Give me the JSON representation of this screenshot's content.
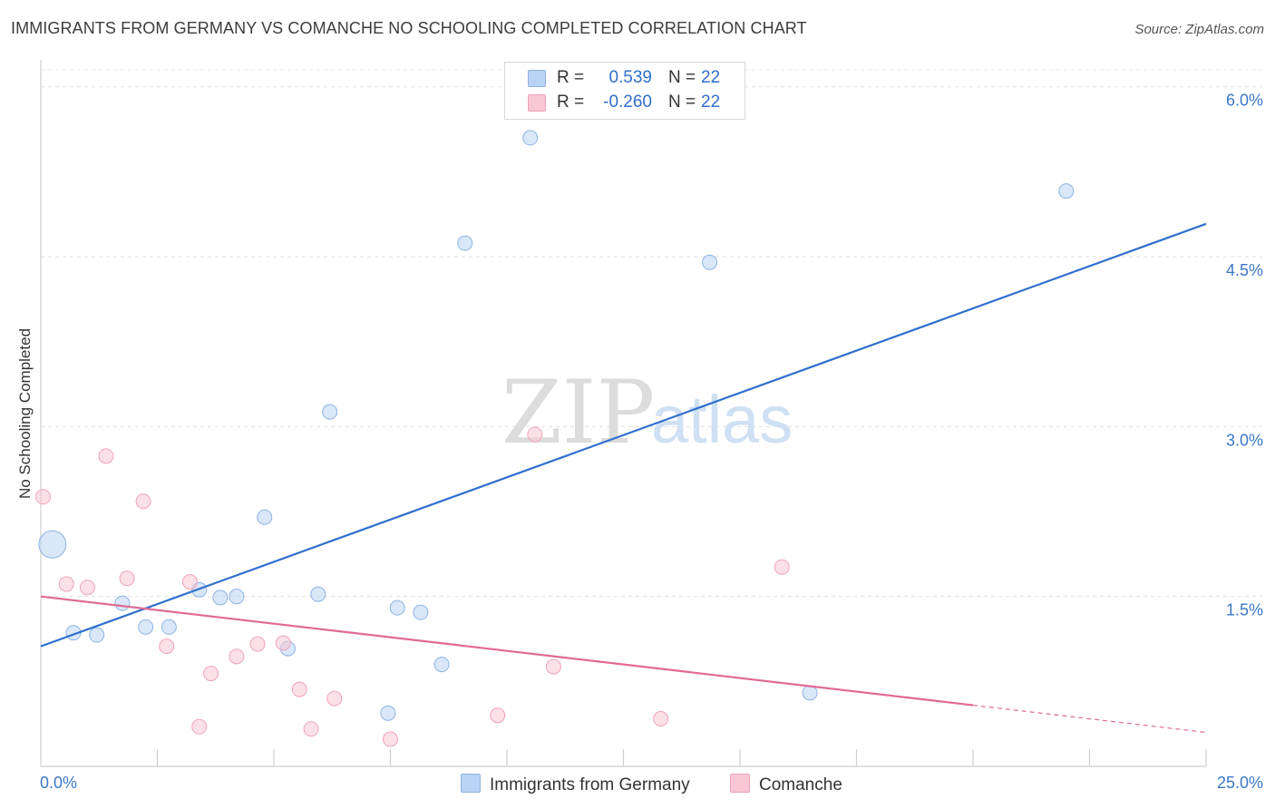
{
  "title": "IMMIGRANTS FROM GERMANY VS COMANCHE NO SCHOOLING COMPLETED CORRELATION CHART",
  "source": "Source: ZipAtlas.com",
  "colors": {
    "blue_fill": "#b9d3f4",
    "blue_stroke": "#8fb3e3",
    "blue_line": "#2f6fcc",
    "pink_fill": "#f9c6d6",
    "pink_stroke": "#efa3ba",
    "pink_line": "#e06a94",
    "label_blue": "#3a78c8"
  },
  "legend": {
    "series1": {
      "r_label": "R =",
      "r_value": "0.539",
      "n_label": "N =",
      "n_value": "22"
    },
    "series2": {
      "r_label": "R =",
      "r_value": "-0.260",
      "n_label": "N =",
      "n_value": "22"
    }
  },
  "bottom_legend": {
    "series1": "Immigrants from Germany",
    "series2": "Comanche"
  },
  "watermark": {
    "zip": "ZIP",
    "atlas": "atlas"
  },
  "chart_data": {
    "type": "scatter",
    "title": "IMMIGRANTS FROM GERMANY VS COMANCHE NO SCHOOLING COMPLETED CORRELATION CHART",
    "xlabel": "",
    "ylabel": "No Schooling Completed",
    "xlim": [
      0,
      25
    ],
    "ylim": [
      0,
      6.15
    ],
    "x_tick_labels": [
      "0.0%",
      "25.0%"
    ],
    "y_ticks": [
      {
        "value": 1.5,
        "label": "1.5%"
      },
      {
        "value": 3.0,
        "label": "3.0%"
      },
      {
        "value": 4.5,
        "label": "4.5%"
      },
      {
        "value": 6.0,
        "label": "6.0%"
      }
    ],
    "grid": "horizontal-dashed",
    "series": [
      {
        "name": "Immigrants from Germany",
        "color": "blue",
        "points": [
          {
            "x": 0.25,
            "y": 1.96,
            "large": true
          },
          {
            "x": 0.7,
            "y": 1.18
          },
          {
            "x": 1.2,
            "y": 1.16
          },
          {
            "x": 1.75,
            "y": 1.44
          },
          {
            "x": 2.25,
            "y": 1.23
          },
          {
            "x": 2.75,
            "y": 1.23
          },
          {
            "x": 3.4,
            "y": 1.56
          },
          {
            "x": 3.85,
            "y": 1.49
          },
          {
            "x": 4.2,
            "y": 1.5
          },
          {
            "x": 4.8,
            "y": 2.2
          },
          {
            "x": 5.3,
            "y": 1.04
          },
          {
            "x": 5.95,
            "y": 1.52
          },
          {
            "x": 6.2,
            "y": 3.13
          },
          {
            "x": 7.45,
            "y": 0.47
          },
          {
            "x": 7.65,
            "y": 1.4
          },
          {
            "x": 8.15,
            "y": 1.36
          },
          {
            "x": 8.6,
            "y": 0.9
          },
          {
            "x": 9.1,
            "y": 4.62
          },
          {
            "x": 10.5,
            "y": 5.55
          },
          {
            "x": 14.35,
            "y": 4.45
          },
          {
            "x": 16.5,
            "y": 0.65
          },
          {
            "x": 22.0,
            "y": 5.08
          }
        ],
        "trend": {
          "x0": 0,
          "y0": 1.06,
          "x1": 25,
          "y1": 4.79
        }
      },
      {
        "name": "Comanche",
        "color": "pink",
        "points": [
          {
            "x": 0.05,
            "y": 2.38
          },
          {
            "x": 0.55,
            "y": 1.61
          },
          {
            "x": 1.0,
            "y": 1.58
          },
          {
            "x": 1.4,
            "y": 2.74
          },
          {
            "x": 1.85,
            "y": 1.66
          },
          {
            "x": 2.2,
            "y": 2.34
          },
          {
            "x": 2.7,
            "y": 1.06
          },
          {
            "x": 3.2,
            "y": 1.63
          },
          {
            "x": 3.4,
            "y": 0.35
          },
          {
            "x": 3.65,
            "y": 0.82
          },
          {
            "x": 4.2,
            "y": 0.97
          },
          {
            "x": 4.65,
            "y": 1.08
          },
          {
            "x": 5.2,
            "y": 1.09
          },
          {
            "x": 5.55,
            "y": 0.68
          },
          {
            "x": 5.8,
            "y": 0.33
          },
          {
            "x": 6.3,
            "y": 0.6
          },
          {
            "x": 7.5,
            "y": 0.24
          },
          {
            "x": 9.8,
            "y": 0.45
          },
          {
            "x": 10.6,
            "y": 2.93
          },
          {
            "x": 11.0,
            "y": 0.88
          },
          {
            "x": 13.3,
            "y": 0.42
          },
          {
            "x": 15.9,
            "y": 1.76
          }
        ],
        "trend": {
          "x0": 0,
          "y0": 1.5,
          "x1": 20,
          "y1": 0.54
        },
        "trend_dashed": {
          "x0": 20,
          "y0": 0.54,
          "x1": 25,
          "y1": 0.3
        }
      }
    ]
  }
}
